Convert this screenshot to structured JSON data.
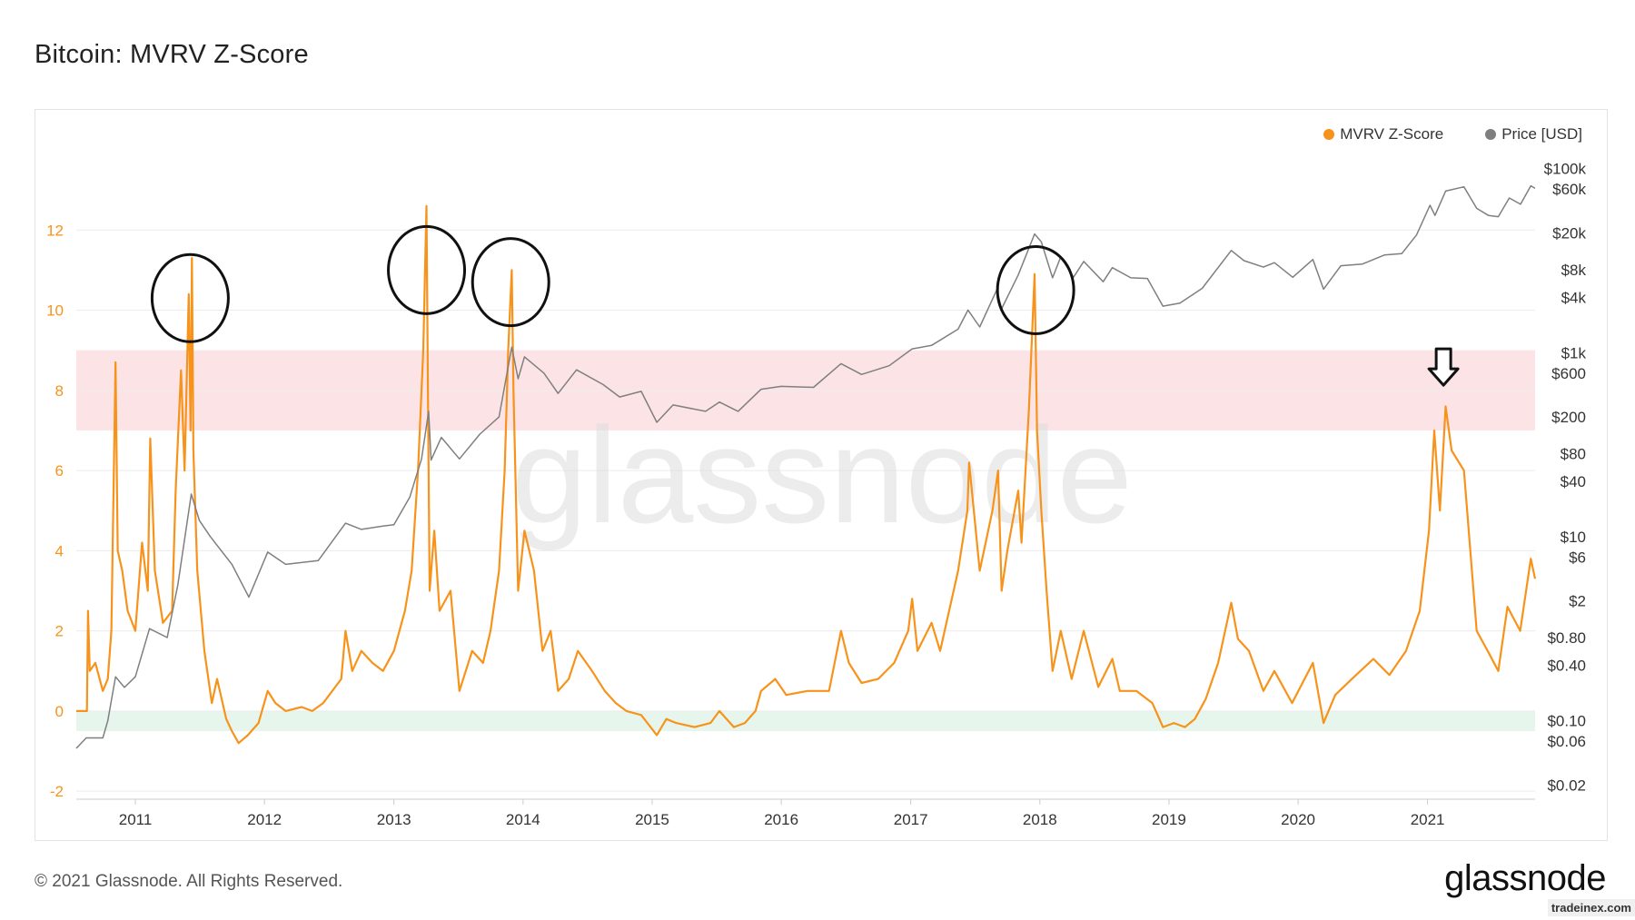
{
  "title": "Bitcoin: MVRV Z-Score",
  "footer": "© 2021 Glassnode. All Rights Reserved.",
  "brand": "glassnode",
  "credit": "tradeinex.com",
  "watermark": "glassnode",
  "colors": {
    "mvrv": "#f7931a",
    "price": "#7f7f7f",
    "red_band": "#fce4e6",
    "green_band": "#e6f6ed",
    "annotation": "#111111"
  },
  "legend": [
    {
      "label": "MVRV Z-Score",
      "color": "#f7931a"
    },
    {
      "label": "Price [USD]",
      "color": "#7f7f7f"
    }
  ],
  "chart_data": {
    "type": "line",
    "title": "Bitcoin: MVRV Z-Score",
    "xlim": [
      "2010-07-18",
      "2021-11-01"
    ],
    "x_ticks": [
      "2011",
      "2012",
      "2013",
      "2014",
      "2015",
      "2016",
      "2017",
      "2018",
      "2019",
      "2020",
      "2021"
    ],
    "y_left": {
      "ylim": [
        -2.2,
        14
      ],
      "ticks": [
        -2,
        0,
        2,
        4,
        6,
        8,
        10,
        12
      ],
      "tick_labels": [
        "-2",
        "0",
        "2",
        "4",
        "6",
        "8",
        "10",
        "12"
      ]
    },
    "y_right": {
      "scale": "log",
      "ylim": [
        0.014,
        160000
      ],
      "ticks": [
        0.02,
        0.06,
        0.1,
        0.4,
        0.8,
        2,
        6,
        10,
        40,
        80,
        200,
        600,
        1000,
        4000,
        8000,
        20000,
        60000,
        100000
      ],
      "tick_labels": [
        "$0.02",
        "$0.06",
        "$0.10",
        "$0.40",
        "$0.80",
        "$2",
        "$6",
        "$10",
        "$40",
        "$80",
        "$200",
        "$600",
        "$1k",
        "$4k",
        "$8k",
        "$20k",
        "$60k",
        "$100k"
      ]
    },
    "bands": [
      {
        "from": 7,
        "to": 9,
        "color": "#fce4e6"
      },
      {
        "from": -0.5,
        "to": 0,
        "color": "#e6f6ed"
      }
    ],
    "grid": true,
    "legend_position": "top-right",
    "series": [
      {
        "name": "MVRV Z-Score",
        "axis": "left",
        "color": "#f7931a",
        "points": [
          [
            "2010-07-18",
            0
          ],
          [
            "2010-08-17",
            0
          ],
          [
            "2010-08-20",
            2.5
          ],
          [
            "2010-08-25",
            1.0
          ],
          [
            "2010-09-10",
            1.2
          ],
          [
            "2010-10-01",
            0.5
          ],
          [
            "2010-10-15",
            0.8
          ],
          [
            "2010-10-25",
            2.0
          ],
          [
            "2010-11-06",
            8.7
          ],
          [
            "2010-11-12",
            4.0
          ],
          [
            "2010-11-25",
            3.5
          ],
          [
            "2010-12-10",
            2.5
          ],
          [
            "2011-01-01",
            2.0
          ],
          [
            "2011-01-20",
            4.2
          ],
          [
            "2011-02-05",
            3.0
          ],
          [
            "2011-02-12",
            6.8
          ],
          [
            "2011-02-25",
            3.5
          ],
          [
            "2011-03-20",
            2.2
          ],
          [
            "2011-04-15",
            2.5
          ],
          [
            "2011-04-25",
            5.5
          ],
          [
            "2011-05-10",
            8.5
          ],
          [
            "2011-05-20",
            6.0
          ],
          [
            "2011-06-01",
            10.4
          ],
          [
            "2011-06-06",
            7.0
          ],
          [
            "2011-06-10",
            11.3
          ],
          [
            "2011-06-14",
            6.5
          ],
          [
            "2011-06-25",
            3.5
          ],
          [
            "2011-07-15",
            1.5
          ],
          [
            "2011-08-05",
            0.2
          ],
          [
            "2011-08-20",
            0.8
          ],
          [
            "2011-09-15",
            -0.2
          ],
          [
            "2011-10-01",
            -0.5
          ],
          [
            "2011-10-20",
            -0.8
          ],
          [
            "2011-11-15",
            -0.6
          ],
          [
            "2011-12-15",
            -0.3
          ],
          [
            "2012-01-10",
            0.5
          ],
          [
            "2012-02-01",
            0.2
          ],
          [
            "2012-03-01",
            0.0
          ],
          [
            "2012-04-15",
            0.1
          ],
          [
            "2012-05-15",
            0.0
          ],
          [
            "2012-06-15",
            0.2
          ],
          [
            "2012-08-05",
            0.8
          ],
          [
            "2012-08-17",
            2.0
          ],
          [
            "2012-09-05",
            1.0
          ],
          [
            "2012-10-01",
            1.5
          ],
          [
            "2012-11-01",
            1.2
          ],
          [
            "2012-12-01",
            1.0
          ],
          [
            "2013-01-01",
            1.5
          ],
          [
            "2013-02-01",
            2.5
          ],
          [
            "2013-02-20",
            3.5
          ],
          [
            "2013-03-10",
            6.0
          ],
          [
            "2013-03-25",
            9.0
          ],
          [
            "2013-04-03",
            12.6
          ],
          [
            "2013-04-07",
            8.0
          ],
          [
            "2013-04-12",
            3.0
          ],
          [
            "2013-04-25",
            4.5
          ],
          [
            "2013-05-10",
            2.5
          ],
          [
            "2013-06-10",
            3.0
          ],
          [
            "2013-07-05",
            0.5
          ],
          [
            "2013-08-10",
            1.5
          ],
          [
            "2013-09-10",
            1.2
          ],
          [
            "2013-10-01",
            2.0
          ],
          [
            "2013-10-25",
            3.5
          ],
          [
            "2013-11-10",
            6.0
          ],
          [
            "2013-11-20",
            9.0
          ],
          [
            "2013-11-30",
            11.0
          ],
          [
            "2013-12-05",
            8.0
          ],
          [
            "2013-12-18",
            3.0
          ],
          [
            "2014-01-05",
            4.5
          ],
          [
            "2014-02-01",
            3.5
          ],
          [
            "2014-02-25",
            1.5
          ],
          [
            "2014-03-20",
            2.0
          ],
          [
            "2014-04-10",
            0.5
          ],
          [
            "2014-05-10",
            0.8
          ],
          [
            "2014-06-05",
            1.5
          ],
          [
            "2014-07-15",
            1.0
          ],
          [
            "2014-08-20",
            0.5
          ],
          [
            "2014-09-20",
            0.2
          ],
          [
            "2014-10-20",
            0.0
          ],
          [
            "2014-12-01",
            -0.1
          ],
          [
            "2015-01-14",
            -0.6
          ],
          [
            "2015-02-10",
            -0.2
          ],
          [
            "2015-03-10",
            -0.3
          ],
          [
            "2015-05-01",
            -0.4
          ],
          [
            "2015-06-15",
            -0.3
          ],
          [
            "2015-07-10",
            0.0
          ],
          [
            "2015-08-20",
            -0.4
          ],
          [
            "2015-09-20",
            -0.3
          ],
          [
            "2015-10-20",
            0.0
          ],
          [
            "2015-11-05",
            0.5
          ],
          [
            "2015-12-15",
            0.8
          ],
          [
            "2016-01-15",
            0.4
          ],
          [
            "2016-03-15",
            0.5
          ],
          [
            "2016-05-15",
            0.5
          ],
          [
            "2016-06-18",
            2.0
          ],
          [
            "2016-07-10",
            1.2
          ],
          [
            "2016-08-15",
            0.7
          ],
          [
            "2016-10-01",
            0.8
          ],
          [
            "2016-11-15",
            1.2
          ],
          [
            "2016-12-25",
            2.0
          ],
          [
            "2017-01-05",
            2.8
          ],
          [
            "2017-01-20",
            1.5
          ],
          [
            "2017-03-01",
            2.2
          ],
          [
            "2017-03-25",
            1.5
          ],
          [
            "2017-05-15",
            3.5
          ],
          [
            "2017-06-10",
            5.0
          ],
          [
            "2017-06-15",
            6.2
          ],
          [
            "2017-07-15",
            3.5
          ],
          [
            "2017-08-20",
            5.0
          ],
          [
            "2017-09-05",
            6.0
          ],
          [
            "2017-09-15",
            3.0
          ],
          [
            "2017-10-01",
            4.0
          ],
          [
            "2017-11-01",
            5.5
          ],
          [
            "2017-11-10",
            4.2
          ],
          [
            "2017-12-01",
            7.5
          ],
          [
            "2017-12-17",
            10.9
          ],
          [
            "2017-12-24",
            7.0
          ],
          [
            "2018-01-05",
            5.0
          ],
          [
            "2018-01-20",
            3.0
          ],
          [
            "2018-02-06",
            1.0
          ],
          [
            "2018-03-01",
            2.0
          ],
          [
            "2018-04-01",
            0.8
          ],
          [
            "2018-05-05",
            2.0
          ],
          [
            "2018-06-15",
            0.6
          ],
          [
            "2018-07-25",
            1.3
          ],
          [
            "2018-08-15",
            0.5
          ],
          [
            "2018-10-01",
            0.5
          ],
          [
            "2018-11-15",
            0.2
          ],
          [
            "2018-12-15",
            -0.4
          ],
          [
            "2019-01-15",
            -0.3
          ],
          [
            "2019-02-15",
            -0.4
          ],
          [
            "2019-03-15",
            -0.2
          ],
          [
            "2019-04-15",
            0.3
          ],
          [
            "2019-05-20",
            1.2
          ],
          [
            "2019-06-26",
            2.7
          ],
          [
            "2019-07-15",
            1.8
          ],
          [
            "2019-08-15",
            1.5
          ],
          [
            "2019-09-25",
            0.5
          ],
          [
            "2019-10-26",
            1.0
          ],
          [
            "2019-12-15",
            0.2
          ],
          [
            "2020-02-12",
            1.2
          ],
          [
            "2020-03-13",
            -0.3
          ],
          [
            "2020-04-15",
            0.4
          ],
          [
            "2020-06-01",
            0.8
          ],
          [
            "2020-08-01",
            1.3
          ],
          [
            "2020-09-15",
            0.9
          ],
          [
            "2020-11-01",
            1.5
          ],
          [
            "2020-12-10",
            2.5
          ],
          [
            "2021-01-05",
            4.5
          ],
          [
            "2021-01-20",
            7.0
          ],
          [
            "2021-02-05",
            5.0
          ],
          [
            "2021-02-21",
            7.6
          ],
          [
            "2021-03-10",
            6.5
          ],
          [
            "2021-04-14",
            6.0
          ],
          [
            "2021-05-20",
            2.0
          ],
          [
            "2021-06-20",
            1.5
          ],
          [
            "2021-07-20",
            1.0
          ],
          [
            "2021-08-15",
            2.6
          ],
          [
            "2021-09-20",
            2.0
          ],
          [
            "2021-10-20",
            3.8
          ],
          [
            "2021-11-01",
            3.3
          ]
        ]
      },
      {
        "name": "Price [USD]",
        "axis": "right",
        "color": "#7f7f7f",
        "points": [
          [
            "2010-07-18",
            0.05
          ],
          [
            "2010-08-15",
            0.065
          ],
          [
            "2010-10-01",
            0.065
          ],
          [
            "2010-10-15",
            0.1
          ],
          [
            "2010-11-06",
            0.3
          ],
          [
            "2010-12-01",
            0.23
          ],
          [
            "2011-01-01",
            0.3
          ],
          [
            "2011-02-10",
            1.0
          ],
          [
            "2011-04-01",
            0.8
          ],
          [
            "2011-05-01",
            3.0
          ],
          [
            "2011-06-08",
            29
          ],
          [
            "2011-07-01",
            15
          ],
          [
            "2011-08-01",
            10
          ],
          [
            "2011-10-01",
            5
          ],
          [
            "2011-11-18",
            2.2
          ],
          [
            "2012-01-10",
            6.8
          ],
          [
            "2012-03-01",
            5.0
          ],
          [
            "2012-06-01",
            5.5
          ],
          [
            "2012-08-17",
            14
          ],
          [
            "2012-10-01",
            12
          ],
          [
            "2012-12-01",
            13
          ],
          [
            "2013-01-01",
            13.5
          ],
          [
            "2013-02-15",
            27
          ],
          [
            "2013-03-20",
            70
          ],
          [
            "2013-04-09",
            230
          ],
          [
            "2013-04-16",
            68
          ],
          [
            "2013-05-15",
            120
          ],
          [
            "2013-07-05",
            70
          ],
          [
            "2013-09-01",
            130
          ],
          [
            "2013-10-25",
            200
          ],
          [
            "2013-11-30",
            1150
          ],
          [
            "2013-12-18",
            520
          ],
          [
            "2014-01-05",
            900
          ],
          [
            "2014-03-01",
            600
          ],
          [
            "2014-04-10",
            360
          ],
          [
            "2014-06-01",
            650
          ],
          [
            "2014-08-15",
            450
          ],
          [
            "2014-10-01",
            330
          ],
          [
            "2014-12-01",
            380
          ],
          [
            "2015-01-14",
            175
          ],
          [
            "2015-03-01",
            270
          ],
          [
            "2015-06-01",
            230
          ],
          [
            "2015-07-10",
            290
          ],
          [
            "2015-09-01",
            230
          ],
          [
            "2015-11-05",
            400
          ],
          [
            "2016-01-01",
            430
          ],
          [
            "2016-04-01",
            420
          ],
          [
            "2016-06-18",
            760
          ],
          [
            "2016-08-15",
            580
          ],
          [
            "2016-11-01",
            720
          ],
          [
            "2017-01-05",
            1100
          ],
          [
            "2017-03-01",
            1200
          ],
          [
            "2017-05-15",
            1800
          ],
          [
            "2017-06-12",
            2900
          ],
          [
            "2017-07-15",
            1900
          ],
          [
            "2017-09-01",
            4800
          ],
          [
            "2017-09-15",
            3000
          ],
          [
            "2017-11-01",
            7000
          ],
          [
            "2017-12-17",
            19500
          ],
          [
            "2018-01-05",
            16000
          ],
          [
            "2018-02-06",
            6500
          ],
          [
            "2018-03-01",
            11000
          ],
          [
            "2018-04-06",
            6600
          ],
          [
            "2018-05-05",
            9800
          ],
          [
            "2018-06-29",
            5900
          ],
          [
            "2018-07-25",
            8400
          ],
          [
            "2018-09-15",
            6500
          ],
          [
            "2018-11-01",
            6400
          ],
          [
            "2018-12-15",
            3200
          ],
          [
            "2019-02-01",
            3450
          ],
          [
            "2019-04-05",
            5000
          ],
          [
            "2019-06-26",
            12900
          ],
          [
            "2019-08-01",
            10000
          ],
          [
            "2019-09-25",
            8500
          ],
          [
            "2019-10-26",
            9500
          ],
          [
            "2019-12-17",
            6600
          ],
          [
            "2020-02-12",
            10300
          ],
          [
            "2020-03-13",
            4900
          ],
          [
            "2020-05-01",
            8800
          ],
          [
            "2020-07-01",
            9200
          ],
          [
            "2020-09-01",
            11500
          ],
          [
            "2020-10-20",
            11900
          ],
          [
            "2020-12-01",
            19000
          ],
          [
            "2021-01-08",
            40000
          ],
          [
            "2021-01-22",
            31000
          ],
          [
            "2021-02-21",
            57000
          ],
          [
            "2021-04-14",
            63500
          ],
          [
            "2021-05-20",
            37000
          ],
          [
            "2021-06-22",
            31000
          ],
          [
            "2021-07-20",
            30000
          ],
          [
            "2021-08-20",
            48000
          ],
          [
            "2021-09-21",
            41000
          ],
          [
            "2021-10-20",
            65000
          ],
          [
            "2021-11-01",
            61000
          ]
        ]
      }
    ],
    "annotations": [
      {
        "type": "ellipse",
        "x": "2011-06-05",
        "y": 10.3
      },
      {
        "type": "ellipse",
        "x": "2013-04-03",
        "y": 11.0
      },
      {
        "type": "ellipse",
        "x": "2013-11-27",
        "y": 10.7
      },
      {
        "type": "ellipse",
        "x": "2017-12-20",
        "y": 10.5
      },
      {
        "type": "down-arrow",
        "x": "2021-02-15",
        "y": 8.4
      }
    ]
  }
}
